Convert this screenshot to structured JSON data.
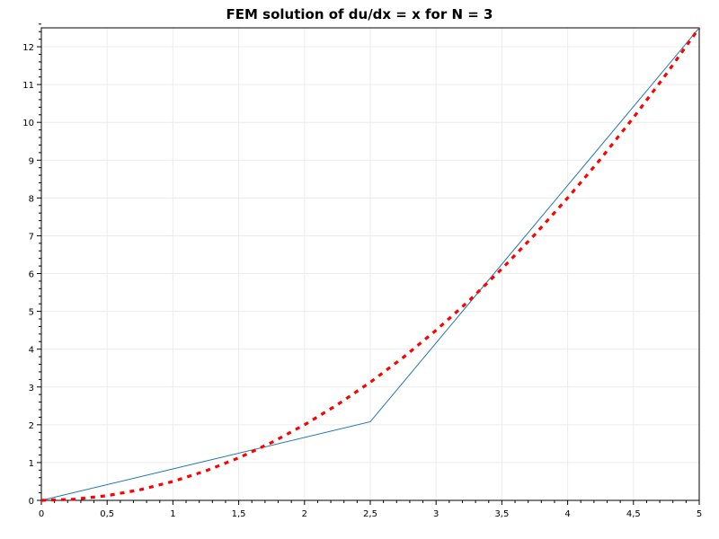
{
  "chart_data": {
    "type": "line",
    "title": "FEM solution of du/dx = x for N = 3",
    "xlabel": "",
    "ylabel": "",
    "xlim": [
      0,
      5
    ],
    "ylim": [
      0,
      12.5
    ],
    "grid": true,
    "x_ticks": [
      0,
      0.5,
      1,
      1.5,
      2,
      2.5,
      3,
      3.5,
      4,
      4.5,
      5
    ],
    "x_tick_labels": [
      "0",
      "0,5",
      "1",
      "1,5",
      "2",
      "2,5",
      "3",
      "3,5",
      "4",
      "4,5",
      "5"
    ],
    "y_ticks": [
      0,
      1,
      2,
      3,
      4,
      5,
      6,
      7,
      8,
      9,
      10,
      11,
      12
    ],
    "y_tick_labels": [
      "0",
      "1",
      "2",
      "3",
      "4",
      "5",
      "6",
      "7",
      "8",
      "9",
      "10",
      "11",
      "12"
    ],
    "series": [
      {
        "style": "solid",
        "color": "#1f77b4",
        "x": [
          0,
          2.5,
          5
        ],
        "y": [
          0,
          2.08,
          12.5
        ]
      },
      {
        "style": "dotted",
        "color": "#ff0000",
        "x": [
          0,
          0.25,
          0.5,
          0.75,
          1,
          1.25,
          1.5,
          1.75,
          2,
          2.25,
          2.5,
          2.75,
          3,
          3.25,
          3.5,
          3.75,
          4,
          4.25,
          4.5,
          4.75,
          5
        ],
        "y": [
          0,
          0.03,
          0.125,
          0.28,
          0.5,
          0.78,
          1.125,
          1.53,
          2,
          2.53,
          3.125,
          3.78,
          4.5,
          5.28,
          6.125,
          7.03,
          8,
          9.03,
          10.125,
          11.28,
          12.5
        ]
      }
    ]
  }
}
